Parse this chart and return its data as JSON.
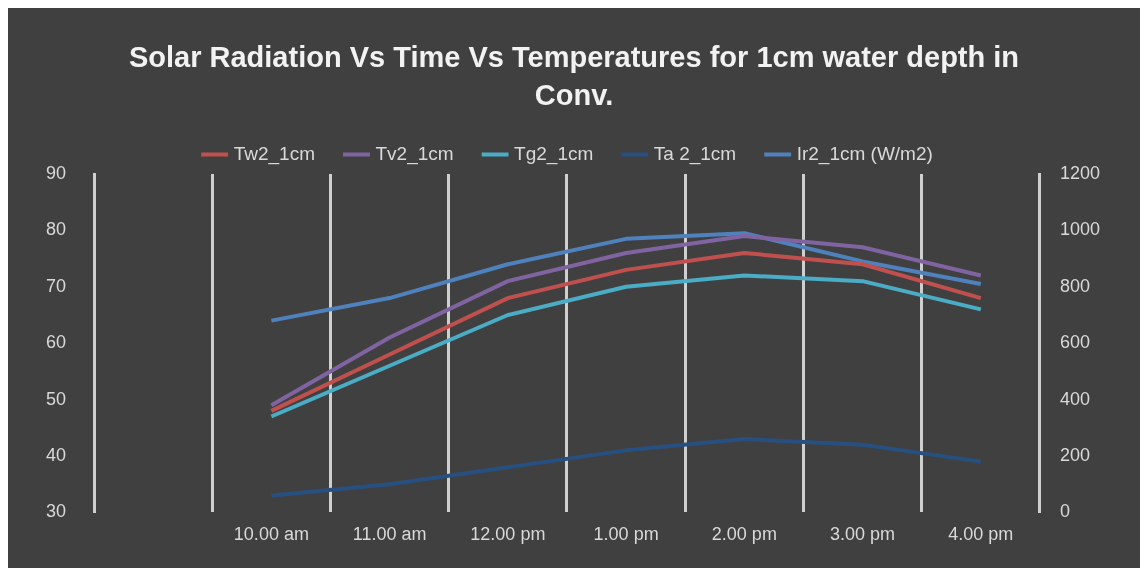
{
  "chart_data": {
    "type": "line",
    "title": "Solar Radiation Vs Time Vs Temperatures for 1cm water depth in Conv.",
    "categories": [
      null,
      "10.00 am",
      "11.00 am",
      "12.00 pm",
      "1.00 pm",
      "2.00 pm",
      "3.00 pm",
      "4.00 pm"
    ],
    "series": [
      {
        "name": "Tw2_1cm",
        "color": "#c0504d",
        "values": [
          null,
          48,
          58,
          68,
          73,
          76,
          74,
          68
        ]
      },
      {
        "name": "Tv2_1cm",
        "color": "#8064a2",
        "values": [
          null,
          49,
          61,
          71,
          76,
          79,
          77,
          72
        ]
      },
      {
        "name": "Tg2_1cm",
        "color": "#4bacc6",
        "values": [
          null,
          47,
          56,
          65,
          70,
          72,
          71,
          66
        ]
      },
      {
        "name": "Ta 2_1cm",
        "color": "#274f80",
        "values": [
          null,
          33,
          35,
          38,
          41,
          43,
          42,
          39
        ]
      },
      {
        "name": "Ir2_1cm (W/m2)",
        "color": "#4f81bd",
        "axis": "y2",
        "values": [
          null,
          680,
          760,
          880,
          970,
          990,
          890,
          810
        ]
      }
    ],
    "ylim": [
      30,
      90
    ],
    "yticks": [
      30,
      40,
      50,
      60,
      70,
      80,
      90
    ],
    "y2lim": [
      0,
      1200
    ],
    "y2ticks": [
      0,
      200,
      400,
      600,
      800,
      1000,
      1200
    ],
    "grid": "x",
    "legend": "top",
    "marker": "none",
    "line_style": "solid"
  }
}
